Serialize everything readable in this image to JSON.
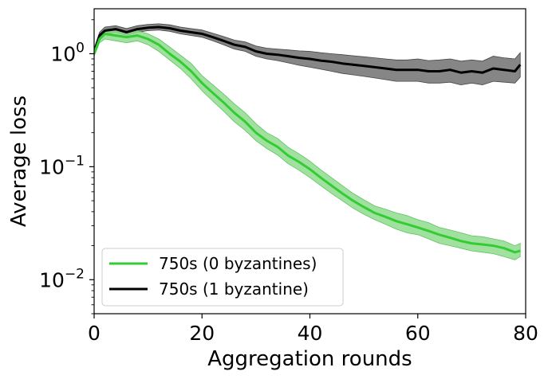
{
  "chart_data": {
    "type": "line",
    "title": "",
    "xlabel": "Aggregation rounds",
    "ylabel": "Average loss",
    "xlim": [
      0,
      80
    ],
    "ylim": [
      0.005,
      2.5
    ],
    "yscale": "log",
    "grid": false,
    "legend_position": "lower-left",
    "x_ticks": [
      {
        "value": 0,
        "label": "0"
      },
      {
        "value": 20,
        "label": "20"
      },
      {
        "value": 40,
        "label": "40"
      },
      {
        "value": 60,
        "label": "60"
      },
      {
        "value": 80,
        "label": "80"
      }
    ],
    "y_ticks": [
      {
        "value": 0.01,
        "base": "10",
        "exp": "−2"
      },
      {
        "value": 0.1,
        "base": "10",
        "exp": "−1"
      },
      {
        "value": 1,
        "base": "10",
        "exp": "0"
      }
    ],
    "series": [
      {
        "name": "750s (0 byzantines)",
        "color": "#33cc33",
        "band_color": "#8fdc8f",
        "x": [
          0,
          1,
          2,
          4,
          6,
          8,
          10,
          12,
          14,
          16,
          18,
          20,
          22,
          24,
          26,
          28,
          30,
          32,
          34,
          36,
          38,
          40,
          42,
          44,
          46,
          48,
          50,
          52,
          54,
          56,
          58,
          60,
          62,
          64,
          66,
          68,
          70,
          72,
          74,
          76,
          78,
          79
        ],
        "y": [
          1.0,
          1.35,
          1.5,
          1.45,
          1.4,
          1.45,
          1.35,
          1.2,
          1.0,
          0.85,
          0.7,
          0.55,
          0.45,
          0.37,
          0.3,
          0.25,
          0.2,
          0.17,
          0.15,
          0.125,
          0.11,
          0.095,
          0.08,
          0.068,
          0.058,
          0.05,
          0.044,
          0.039,
          0.036,
          0.033,
          0.031,
          0.029,
          0.027,
          0.025,
          0.0235,
          0.022,
          0.021,
          0.0205,
          0.02,
          0.019,
          0.0175,
          0.018
        ],
        "lower": [
          0.95,
          1.25,
          1.35,
          1.3,
          1.25,
          1.3,
          1.2,
          1.05,
          0.88,
          0.74,
          0.6,
          0.47,
          0.38,
          0.31,
          0.25,
          0.21,
          0.17,
          0.145,
          0.127,
          0.106,
          0.093,
          0.08,
          0.068,
          0.058,
          0.05,
          0.043,
          0.038,
          0.034,
          0.031,
          0.028,
          0.026,
          0.025,
          0.023,
          0.021,
          0.02,
          0.019,
          0.018,
          0.0175,
          0.017,
          0.016,
          0.015,
          0.016
        ],
        "upper": [
          1.05,
          1.45,
          1.65,
          1.6,
          1.55,
          1.6,
          1.5,
          1.35,
          1.15,
          0.97,
          0.82,
          0.64,
          0.53,
          0.44,
          0.36,
          0.3,
          0.24,
          0.2,
          0.178,
          0.148,
          0.13,
          0.112,
          0.094,
          0.08,
          0.068,
          0.058,
          0.051,
          0.045,
          0.042,
          0.039,
          0.037,
          0.034,
          0.032,
          0.029,
          0.0275,
          0.026,
          0.0245,
          0.024,
          0.023,
          0.022,
          0.02,
          0.021
        ]
      },
      {
        "name": "750s (1 byzantine)",
        "color": "#000000",
        "band_color": "#7f7f7f",
        "x": [
          0,
          1,
          2,
          4,
          6,
          8,
          10,
          12,
          14,
          16,
          18,
          20,
          22,
          24,
          26,
          28,
          30,
          32,
          34,
          36,
          38,
          40,
          42,
          44,
          46,
          48,
          50,
          52,
          54,
          56,
          58,
          60,
          62,
          64,
          66,
          68,
          70,
          72,
          74,
          76,
          78,
          79
        ],
        "y": [
          1.05,
          1.45,
          1.6,
          1.65,
          1.55,
          1.65,
          1.7,
          1.72,
          1.68,
          1.6,
          1.55,
          1.5,
          1.4,
          1.3,
          1.2,
          1.15,
          1.05,
          1.0,
          0.98,
          0.95,
          0.92,
          0.9,
          0.87,
          0.85,
          0.82,
          0.8,
          0.78,
          0.76,
          0.74,
          0.72,
          0.72,
          0.72,
          0.7,
          0.7,
          0.72,
          0.68,
          0.7,
          0.68,
          0.74,
          0.72,
          0.7,
          0.8
        ],
        "lower": [
          1.0,
          1.35,
          1.5,
          1.55,
          1.45,
          1.55,
          1.6,
          1.62,
          1.58,
          1.5,
          1.45,
          1.4,
          1.3,
          1.2,
          1.1,
          1.05,
          0.95,
          0.9,
          0.87,
          0.83,
          0.79,
          0.76,
          0.73,
          0.7,
          0.67,
          0.65,
          0.63,
          0.61,
          0.59,
          0.57,
          0.57,
          0.57,
          0.55,
          0.55,
          0.56,
          0.53,
          0.55,
          0.53,
          0.57,
          0.56,
          0.55,
          0.62
        ],
        "upper": [
          1.1,
          1.55,
          1.72,
          1.77,
          1.67,
          1.77,
          1.82,
          1.84,
          1.8,
          1.72,
          1.67,
          1.62,
          1.52,
          1.42,
          1.32,
          1.27,
          1.17,
          1.12,
          1.1,
          1.08,
          1.06,
          1.05,
          1.02,
          1.0,
          0.98,
          0.96,
          0.94,
          0.92,
          0.9,
          0.88,
          0.88,
          0.9,
          0.87,
          0.88,
          0.9,
          0.86,
          0.88,
          0.86,
          0.95,
          0.92,
          0.9,
          1.02
        ]
      }
    ]
  }
}
